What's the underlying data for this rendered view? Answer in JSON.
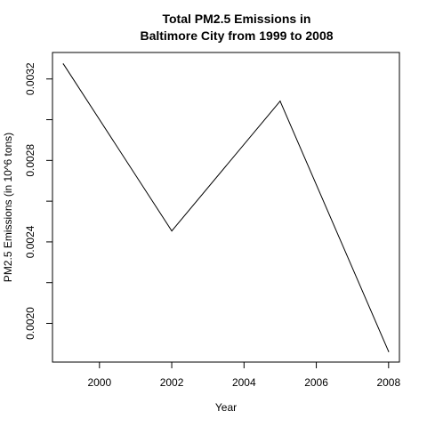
{
  "chart_data": {
    "type": "line",
    "title_line1": "Total PM2.5 Emissions in",
    "title_line2": "Baltimore City from 1999 to 2008",
    "xlabel": "Year",
    "ylabel": "PM2.5 Emissions (in 10^6 tons)",
    "x": [
      1999,
      2002,
      2005,
      2008
    ],
    "y": [
      0.003274,
      0.002454,
      0.003091,
      0.001862
    ],
    "xlim": [
      1998.7,
      2008.3
    ],
    "ylim": [
      0.00181,
      0.00333
    ],
    "xticks": [
      2000,
      2002,
      2004,
      2006,
      2008
    ],
    "xtick_labels": [
      "2000",
      "2002",
      "2004",
      "2006",
      "2008"
    ],
    "yticks": [
      0.0018,
      0.002,
      0.0022,
      0.0024,
      0.0026,
      0.0028,
      0.003,
      0.0032
    ],
    "ytick_labels": [
      "",
      "0.0020",
      "",
      "0.0024",
      "",
      "0.0028",
      "",
      "0.0032"
    ],
    "line_color": "#000000",
    "grid": false
  }
}
